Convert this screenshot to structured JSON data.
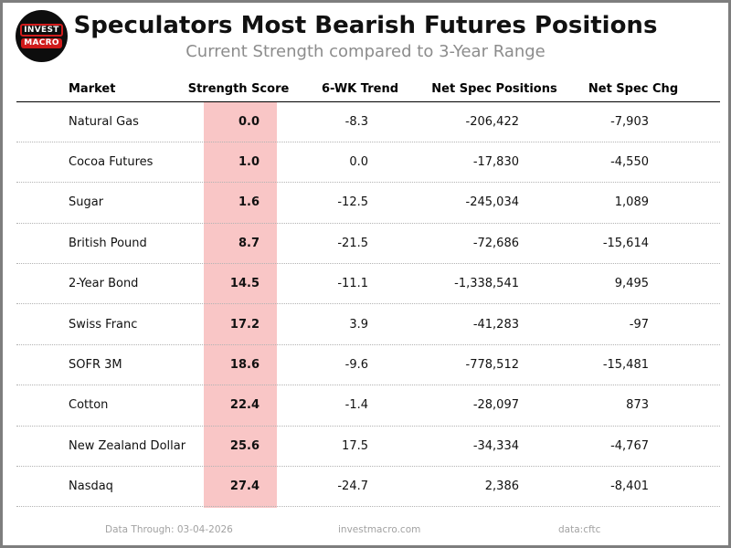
{
  "header": {
    "title": "Speculators Most Bearish Futures Positions",
    "subtitle": "Current Strength compared to 3-Year Range",
    "logo": {
      "line1": "INVEST",
      "line2": "MACRO"
    }
  },
  "table": {
    "columns": [
      "Market",
      "Strength Score",
      "6-WK Trend",
      "Net Spec Positions",
      "Net Spec Chg"
    ],
    "rows": [
      {
        "market": "Natural Gas",
        "score": "0.0",
        "trend": "-8.3",
        "positions": "-206,422",
        "change": "-7,903"
      },
      {
        "market": "Cocoa Futures",
        "score": "1.0",
        "trend": "0.0",
        "positions": "-17,830",
        "change": "-4,550"
      },
      {
        "market": "Sugar",
        "score": "1.6",
        "trend": "-12.5",
        "positions": "-245,034",
        "change": "1,089"
      },
      {
        "market": "British Pound",
        "score": "8.7",
        "trend": "-21.5",
        "positions": "-72,686",
        "change": "-15,614"
      },
      {
        "market": "2-Year Bond",
        "score": "14.5",
        "trend": "-11.1",
        "positions": "-1,338,541",
        "change": "9,495"
      },
      {
        "market": "Swiss Franc",
        "score": "17.2",
        "trend": "3.9",
        "positions": "-41,283",
        "change": "-97"
      },
      {
        "market": "SOFR 3M",
        "score": "18.6",
        "trend": "-9.6",
        "positions": "-778,512",
        "change": "-15,481"
      },
      {
        "market": "Cotton",
        "score": "22.4",
        "trend": "-1.4",
        "positions": "-28,097",
        "change": "873"
      },
      {
        "market": "New Zealand Dollar",
        "score": "25.6",
        "trend": "17.5",
        "positions": "-34,334",
        "change": "-4,767"
      },
      {
        "market": "Nasdaq",
        "score": "27.4",
        "trend": "-24.7",
        "positions": "2,386",
        "change": "-8,401"
      }
    ]
  },
  "chart_data": {
    "type": "table",
    "title": "Speculators Most Bearish Futures Positions",
    "subtitle": "Current Strength compared to 3-Year Range",
    "columns": [
      "Market",
      "Strength Score",
      "6-WK Trend",
      "Net Spec Positions",
      "Net Spec Chg"
    ],
    "rows": [
      [
        "Natural Gas",
        0.0,
        -8.3,
        -206422,
        -7903
      ],
      [
        "Cocoa Futures",
        1.0,
        0.0,
        -17830,
        -4550
      ],
      [
        "Sugar",
        1.6,
        -12.5,
        -245034,
        1089
      ],
      [
        "British Pound",
        8.7,
        -21.5,
        -72686,
        -15614
      ],
      [
        "2-Year Bond",
        14.5,
        -11.1,
        -1338541,
        9495
      ],
      [
        "Swiss Franc",
        17.2,
        3.9,
        -41283,
        -97
      ],
      [
        "SOFR 3M",
        18.6,
        -9.6,
        -778512,
        -15481
      ],
      [
        "Cotton",
        22.4,
        -1.4,
        -28097,
        873
      ],
      [
        "New Zealand Dollar",
        25.6,
        17.5,
        -34334,
        -4767
      ],
      [
        "Nasdaq",
        27.4,
        -24.7,
        2386,
        -8401
      ]
    ],
    "highlighted_column": "Strength Score"
  },
  "footer": {
    "data_through": "Data Through: 03-04-2026",
    "site": "investmacro.com",
    "source": "data:cftc"
  },
  "colors": {
    "score_highlight": "#f9c6c6",
    "accent_red": "#d01b1b",
    "subtitle_gray": "#8c8c8c",
    "footer_gray": "#a2a2a2",
    "frame_border": "#7e7e7e"
  }
}
